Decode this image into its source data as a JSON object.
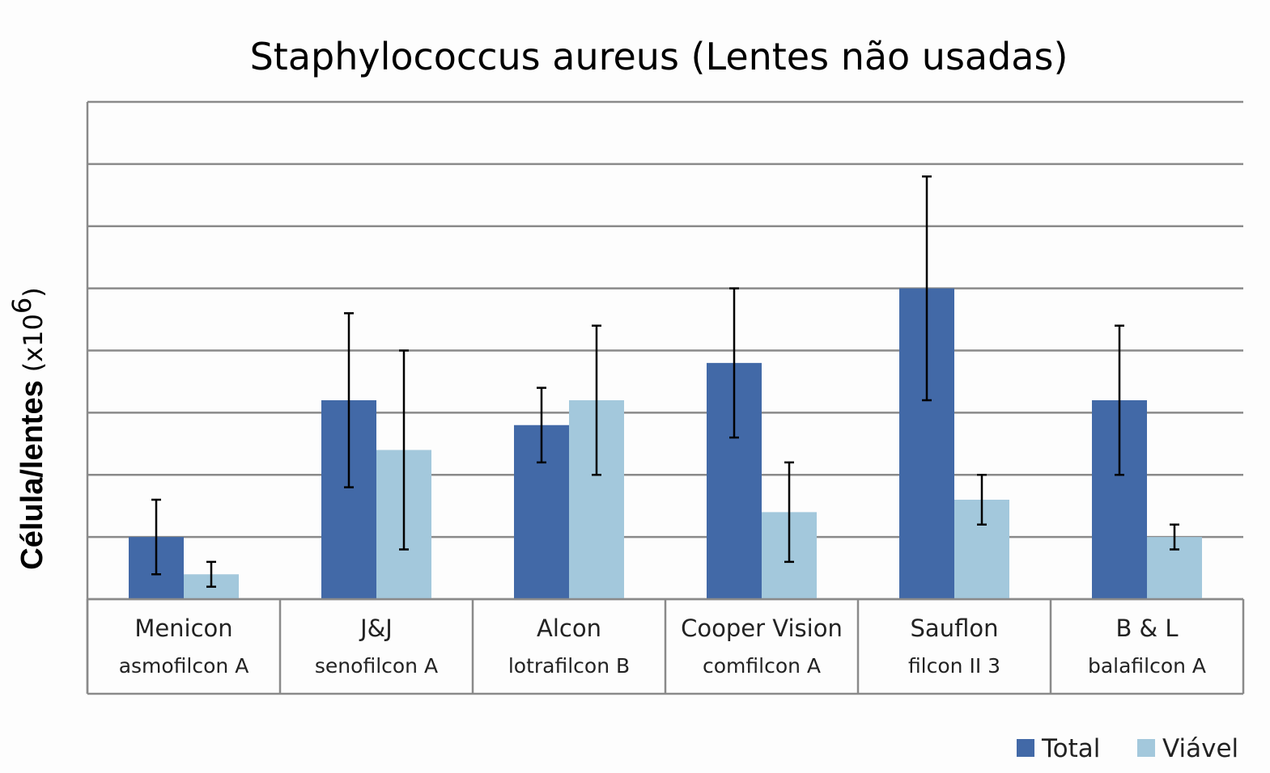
{
  "chart_data": {
    "type": "bar",
    "title": "Staphylococcus aureus (Lentes não usadas)",
    "ylabel": "Célula/lentes",
    "ylabel_unit": "(x10",
    "ylabel_exp": "6",
    "ylabel_close": ")",
    "ylim": [
      0,
      8
    ],
    "gridlines": 8,
    "grid": true,
    "legend_position": "bottom-right",
    "categories": [
      {
        "name": "Menicon",
        "material": "asmofilcon A"
      },
      {
        "name": "J&J",
        "material": "senofilcon A"
      },
      {
        "name": "Alcon",
        "material": "lotrafilcon B"
      },
      {
        "name": "Cooper Vision",
        "material": "comfilcon A"
      },
      {
        "name": "Sauflon",
        "material": "filcon II 3"
      },
      {
        "name": "B & L",
        "material": "balafilcon A"
      }
    ],
    "series": [
      {
        "name": "Total",
        "color": "#4269a7",
        "values": [
          1.0,
          3.2,
          2.8,
          3.8,
          5.0,
          3.2
        ],
        "errors": [
          0.6,
          1.4,
          0.6,
          1.2,
          1.8,
          1.2
        ]
      },
      {
        "name": "Viável",
        "color": "#a3c8dc",
        "values": [
          0.4,
          2.4,
          3.2,
          1.4,
          1.6,
          1.0
        ],
        "errors": [
          0.2,
          1.6,
          1.2,
          0.8,
          0.4,
          0.2
        ]
      }
    ]
  }
}
